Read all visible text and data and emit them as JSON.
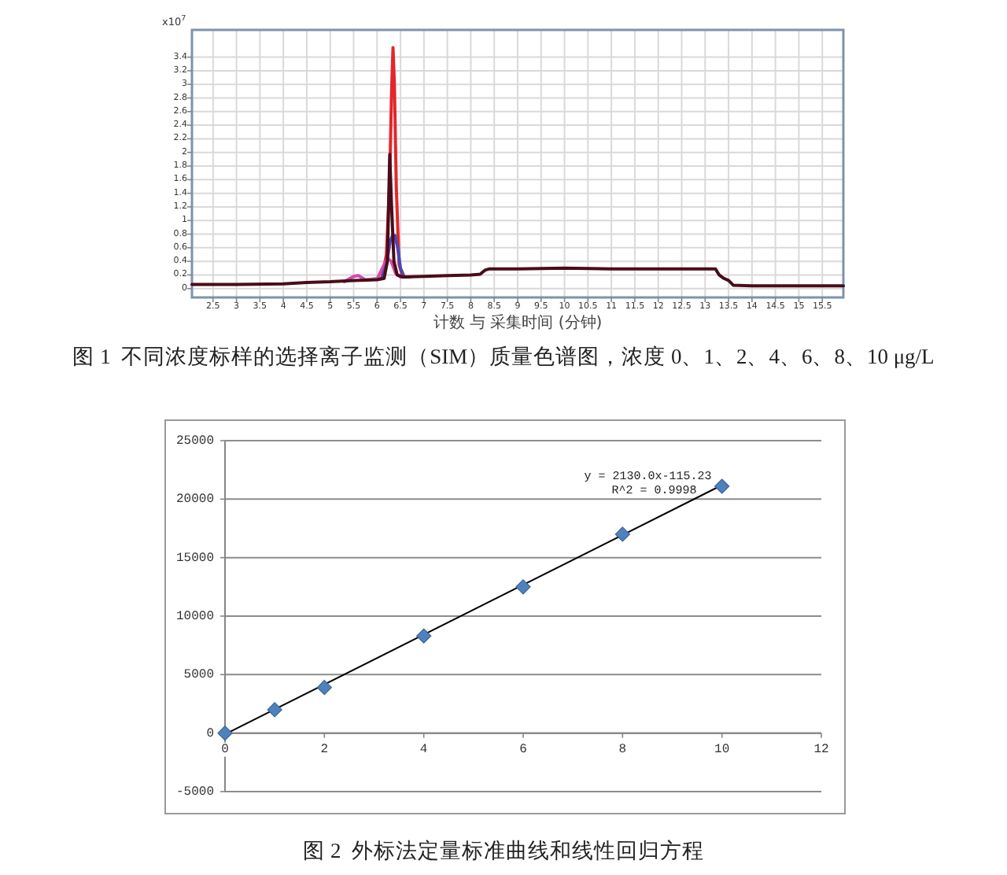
{
  "chart_data": [
    {
      "type": "line",
      "xlabel": "计数 与 采集时间 (分钟)",
      "ylabel": "x10$^{7}$",
      "xlim": [
        2.05,
        15.95
      ],
      "ylim": [
        -0.13,
        3.8
      ],
      "xticks": [
        2.5,
        3,
        3.5,
        4,
        4.5,
        5,
        5.5,
        6,
        6.5,
        7,
        7.5,
        8,
        8.5,
        9,
        9.5,
        10,
        10.5,
        11,
        11.5,
        12,
        12.5,
        13,
        13.5,
        14,
        14.5,
        15,
        15.5
      ],
      "yticks": [
        0,
        0.2,
        0.4,
        0.6,
        0.8,
        1,
        1.2,
        1.4,
        1.6,
        1.8,
        2,
        2.2,
        2.4,
        2.6,
        2.8,
        3,
        3.2,
        3.4
      ],
      "grid": true,
      "series": [
        {
          "color": "#e3262b",
          "x": [
            5.9,
            6.1,
            6.2,
            6.27,
            6.31,
            6.34,
            6.37,
            6.41,
            6.47,
            6.55,
            6.7
          ],
          "values": [
            0.14,
            0.15,
            0.5,
            1.6,
            2.9,
            3.54,
            3.0,
            1.5,
            0.35,
            0.17,
            0.17
          ]
        },
        {
          "color": "#d64aa8",
          "x": [
            5.3,
            5.5,
            5.6,
            5.75,
            6.0,
            6.15,
            6.22,
            6.3,
            6.4,
            6.5
          ],
          "values": [
            0.1,
            0.18,
            0.19,
            0.13,
            0.14,
            0.35,
            0.45,
            0.4,
            0.22,
            0.17
          ]
        },
        {
          "color": "#4b47b8",
          "x": [
            6.1,
            6.2,
            6.28,
            6.33,
            6.38,
            6.44,
            6.5,
            6.58
          ],
          "values": [
            0.15,
            0.35,
            0.7,
            0.78,
            0.78,
            0.6,
            0.3,
            0.17
          ]
        },
        {
          "color": "#4a0c1a",
          "x": [
            2.05,
            3,
            4,
            4.5,
            5,
            5.5,
            6.0,
            6.15,
            6.22,
            6.27,
            6.31,
            6.36,
            6.43,
            6.55,
            7.0,
            7.5,
            8.0,
            8.2,
            8.3,
            8.4,
            9,
            10,
            11,
            12,
            13,
            13.22,
            13.3,
            13.4,
            13.5,
            13.6,
            14,
            15,
            15.95
          ],
          "values": [
            0.06,
            0.06,
            0.07,
            0.09,
            0.1,
            0.12,
            0.13,
            0.15,
            0.4,
            1.97,
            1.2,
            0.4,
            0.2,
            0.17,
            0.18,
            0.19,
            0.2,
            0.21,
            0.27,
            0.29,
            0.29,
            0.3,
            0.29,
            0.29,
            0.29,
            0.29,
            0.2,
            0.15,
            0.12,
            0.05,
            0.04,
            0.04,
            0.04
          ]
        }
      ],
      "annotations": [
        "图 1  不同浓度标样的选择离子监测（SIM）质量色谱图，浓度 0、1、2、4、6、8、10 μg/L"
      ]
    },
    {
      "type": "scatter",
      "xlim": [
        0,
        12
      ],
      "ylim": [
        -5000,
        25000
      ],
      "xticks": [
        0,
        2,
        4,
        6,
        8,
        10,
        12
      ],
      "yticks": [
        -5000,
        0,
        5000,
        10000,
        15000,
        20000,
        25000
      ],
      "grid": "y",
      "series": [
        {
          "type": "line",
          "color": "#000000",
          "x": [
            0,
            10
          ],
          "values": [
            -100,
            21200
          ]
        },
        {
          "color": "#4f81bd",
          "marker": "diamond",
          "x": [
            0,
            1,
            2,
            4,
            6,
            8,
            10
          ],
          "values": [
            0,
            2000,
            3900,
            8300,
            12500,
            17000,
            21100
          ]
        }
      ],
      "annotations": [
        "y = 2130.0x-115.23",
        "R^2 = 0.9998",
        "图 2  外标法定量标准曲线和线性回归方程"
      ]
    }
  ]
}
